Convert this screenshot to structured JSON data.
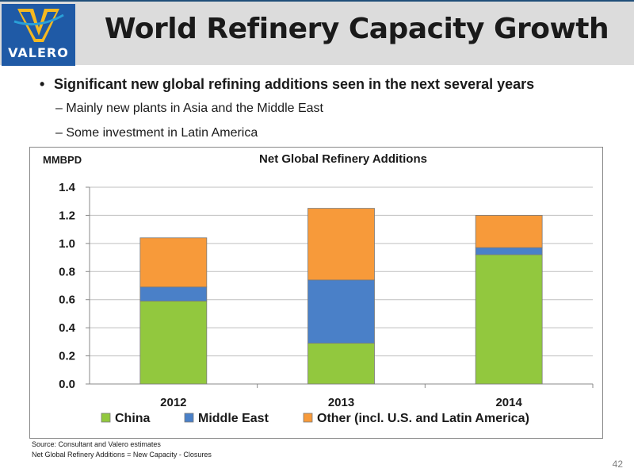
{
  "header": {
    "logo_text": "VALERO",
    "title": "World Refinery Capacity Growth"
  },
  "bullets": {
    "main": "Significant new global refining additions seen in the next several years",
    "sub1": "Mainly new plants in Asia and the Middle East",
    "sub2": "Some investment in Latin America",
    "dash": "–",
    "dot": "•"
  },
  "footnotes": {
    "source": "Source:  Consultant and Valero estimates",
    "definition": "Net Global Refinery Additions = New Capacity - Closures"
  },
  "page_number": "42",
  "chart_data": {
    "type": "bar",
    "stacked": true,
    "title": "Net Global Refinery Additions",
    "ylabel": "MMBPD",
    "xlabel": "",
    "categories": [
      "2012",
      "2013",
      "2014"
    ],
    "ylim": [
      0,
      1.4
    ],
    "yticks": [
      "0.0",
      "0.2",
      "0.4",
      "0.6",
      "0.8",
      "1.0",
      "1.2",
      "1.4"
    ],
    "grid": true,
    "legend": "bottom",
    "series": [
      {
        "name": "China",
        "values": [
          0.59,
          0.29,
          0.92
        ],
        "color": "#92c83e"
      },
      {
        "name": "Middle East",
        "values": [
          0.1,
          0.45,
          0.05
        ],
        "color": "#4a80c8"
      },
      {
        "name": "Other (incl. U.S. and Latin America)",
        "values": [
          0.35,
          0.51,
          0.23
        ],
        "color": "#f79a3a"
      }
    ]
  }
}
